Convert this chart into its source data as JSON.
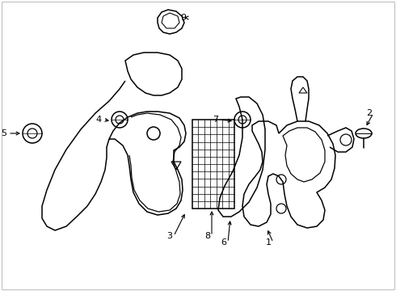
{
  "background_color": "#ffffff",
  "line_color": "#000000",
  "border_color": "#c0c0c0",
  "fig_width": 4.9,
  "fig_height": 3.6,
  "dpi": 100
}
